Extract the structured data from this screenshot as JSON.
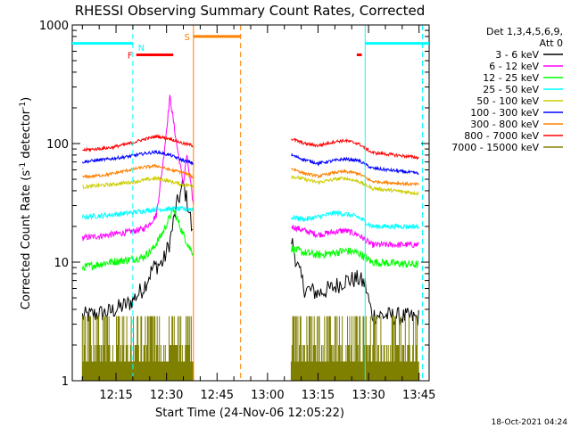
{
  "chart_data": {
    "type": "line",
    "title": "RHESSI Observing Summary Count Rates, Corrected",
    "xlabel": "Start Time (24-Nov-06 12:05:22)",
    "ylabel_parts": [
      "Corrected Count Rate (s",
      "-1",
      " detector",
      "-1",
      ")"
    ],
    "y_scale": "log",
    "ylim": [
      1,
      1000
    ],
    "y_ticks": [
      {
        "v": 1,
        "label": "1"
      },
      {
        "v": 10,
        "label": "10"
      },
      {
        "v": 100,
        "label": "100"
      },
      {
        "v": 1000,
        "label": "1000"
      }
    ],
    "xlim_minutes": [
      -3,
      103
    ],
    "x_ticks": [
      {
        "m": 10,
        "label": "12:15"
      },
      {
        "m": 25,
        "label": "12:30"
      },
      {
        "m": 40,
        "label": "12:45"
      },
      {
        "m": 55,
        "label": "13:00"
      },
      {
        "m": 70,
        "label": "13:15"
      },
      {
        "m": 85,
        "label": "13:30"
      },
      {
        "m": 100,
        "label": "13:45"
      }
    ],
    "legend_header": [
      "Det 1,3,4,5,6,9,",
      "Att 0"
    ],
    "legend_position": "right",
    "series": [
      {
        "name": "3 - 6 keV",
        "color": "#000000",
        "x": [
          0,
          8,
          14,
          18,
          21,
          24,
          26,
          28,
          30,
          32,
          33,
          62,
          64,
          66,
          70,
          74,
          78,
          82,
          84,
          86,
          100
        ],
        "y": [
          3.5,
          3.8,
          4.5,
          6,
          9,
          10,
          15,
          30,
          45,
          25,
          14,
          16,
          9,
          6,
          5.5,
          6,
          7,
          7.2,
          6.5,
          3.6,
          3.4
        ],
        "noise": 0.18
      },
      {
        "name": "6 - 12 keV",
        "color": "#ff00ff",
        "x": [
          0,
          8,
          14,
          18,
          20,
          22,
          24,
          26,
          28,
          30,
          31,
          32,
          33,
          62,
          70,
          75,
          78,
          82,
          86,
          100
        ],
        "y": [
          16,
          17,
          18,
          19,
          21,
          25,
          70,
          250,
          100,
          45,
          80,
          50,
          30,
          20,
          17,
          18,
          18.5,
          17,
          14,
          14
        ],
        "noise": 0.06
      },
      {
        "name": "12 - 25 keV",
        "color": "#00ff00",
        "x": [
          0,
          8,
          14,
          18,
          21,
          24,
          27,
          30,
          32,
          33,
          62,
          66,
          70,
          75,
          78,
          82,
          86,
          100
        ],
        "y": [
          9,
          10,
          10.5,
          11,
          13,
          18,
          28,
          17,
          13,
          12,
          13,
          12,
          11.5,
          12,
          12.5,
          12,
          10,
          9.5
        ],
        "noise": 0.08
      },
      {
        "name": "25 - 50 keV",
        "color": "#00ffff",
        "x": [
          0,
          8,
          14,
          18,
          22,
          26,
          30,
          33,
          62,
          66,
          70,
          75,
          78,
          82,
          86,
          100
        ],
        "y": [
          24,
          25,
          26,
          27,
          28,
          28,
          28,
          28,
          24,
          23,
          24,
          26,
          25.5,
          24,
          20,
          20
        ],
        "noise": 0.05
      },
      {
        "name": "50 - 100 keV",
        "color": "#cccc00",
        "x": [
          0,
          8,
          14,
          18,
          22,
          26,
          30,
          33,
          62,
          66,
          70,
          75,
          78,
          82,
          86,
          100
        ],
        "y": [
          43,
          45,
          47,
          49,
          51,
          48,
          45,
          44,
          53,
          50,
          47,
          50,
          51,
          48,
          42,
          38
        ],
        "noise": 0.035
      },
      {
        "name": "100 - 300 keV",
        "color": "#0000ff",
        "x": [
          0,
          8,
          14,
          18,
          22,
          26,
          30,
          33,
          62,
          66,
          70,
          75,
          78,
          82,
          86,
          100
        ],
        "y": [
          70,
          74,
          78,
          82,
          85,
          80,
          72,
          68,
          80,
          73,
          68,
          72,
          74,
          72,
          62,
          56
        ],
        "noise": 0.03
      },
      {
        "name": "300 - 800 keV",
        "color": "#ff8000",
        "x": [
          0,
          8,
          14,
          18,
          22,
          26,
          30,
          33,
          62,
          66,
          70,
          75,
          78,
          82,
          86,
          100
        ],
        "y": [
          52,
          55,
          60,
          63,
          65,
          60,
          57,
          52,
          62,
          56,
          53,
          57,
          58,
          56,
          48,
          45
        ],
        "noise": 0.03
      },
      {
        "name": "800 - 7000 keV",
        "color": "#ff0000",
        "x": [
          0,
          8,
          14,
          18,
          22,
          26,
          30,
          33,
          62,
          66,
          70,
          75,
          78,
          82,
          86,
          100
        ],
        "y": [
          88,
          92,
          100,
          108,
          115,
          110,
          100,
          96,
          110,
          100,
          96,
          104,
          106,
          100,
          84,
          76
        ],
        "noise": 0.03
      },
      {
        "name": "7000 - 15000 keV",
        "color": "#808000",
        "x": [
          0,
          33,
          62,
          100
        ],
        "y": [
          2,
          2,
          2,
          2
        ],
        "noise": 0
      }
    ],
    "flag_bars": [
      {
        "label": "",
        "color": "#00ffff",
        "x1": -3,
        "x2": 15,
        "y": 700
      },
      {
        "label": "",
        "color": "#00ffff",
        "x1": 84,
        "x2": 103,
        "y": 700
      },
      {
        "label": "F",
        "color": "#ff0000",
        "x1": 16,
        "x2": 27,
        "y": 560
      },
      {
        "label": "",
        "color": "#ff0000",
        "x1": 81.5,
        "x2": 83,
        "y": 560
      },
      {
        "label": "S",
        "color": "#ff8000",
        "x1": 33,
        "x2": 47,
        "y": 800
      }
    ],
    "n_marker": {
      "label": "N",
      "color": "#00ffff",
      "x": 17.5,
      "y": 650
    },
    "vlines": [
      {
        "x": 15,
        "color": "#00ffff",
        "dashed": true
      },
      {
        "x": 33,
        "color": "#ff8000",
        "dashed": false
      },
      {
        "x": 47,
        "color": "#ff8000",
        "dashed": true
      },
      {
        "x": 84,
        "color": "#00ffff",
        "dashed": false
      },
      {
        "x": 101,
        "color": "#00ffff",
        "dashed": true
      }
    ],
    "gaps": [
      [
        33,
        62
      ]
    ],
    "footer_date": "18-Oct-2021 04:24"
  }
}
